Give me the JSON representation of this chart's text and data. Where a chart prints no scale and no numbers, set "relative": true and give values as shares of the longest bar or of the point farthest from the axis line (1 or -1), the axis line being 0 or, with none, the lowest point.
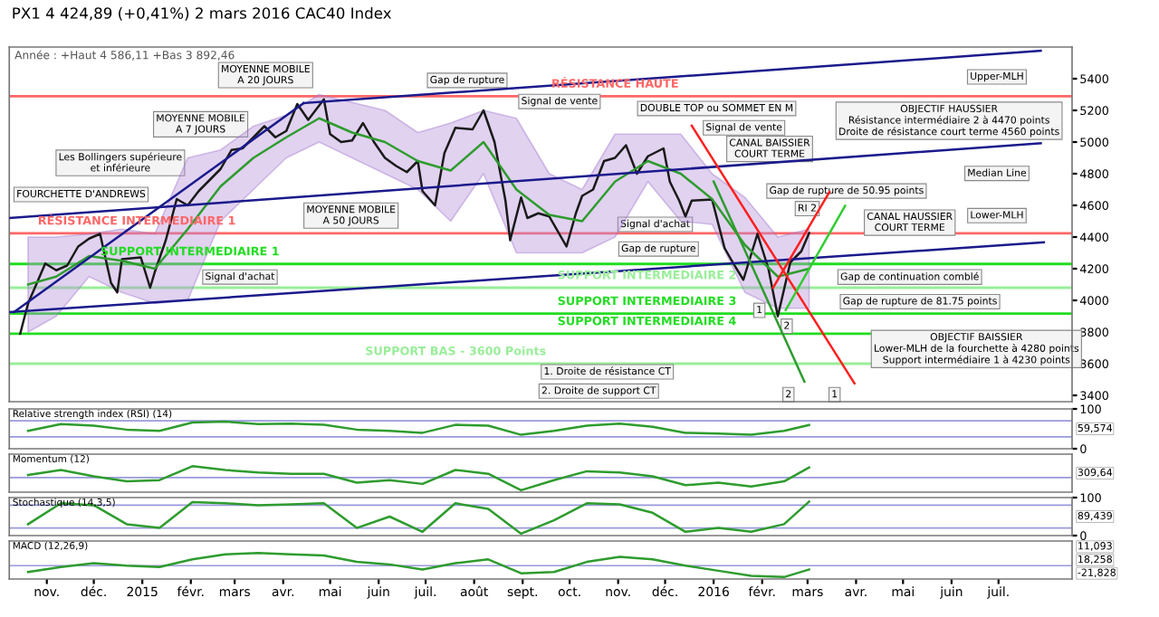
{
  "chart_data": [
    {
      "type": "line",
      "title": "PX1 4 424,89 (+0,41%) 2 mars 2016 CAC40 Index",
      "subtitle": "Année : +Haut 4 586,11 +Bas 3 892,46",
      "xlim": [
        "2014-10-08",
        "2016-08-17"
      ],
      "ylim": [
        3360,
        5600
      ],
      "yticks": [
        3400,
        3600,
        3800,
        4000,
        4200,
        4400,
        4600,
        4800,
        5000,
        5200,
        5400
      ],
      "tick_labels": "y",
      "grid": false,
      "series": [
        {
          "color": "#1a1a1a",
          "x": [
            "2014-10-15",
            "2014-10-20",
            "2014-10-31",
            "2014-11-07",
            "2014-11-14",
            "2014-11-21",
            "2014-11-28",
            "2014-12-05",
            "2014-12-12",
            "2014-12-16",
            "2014-12-19",
            "2014-12-31",
            "2015-01-06",
            "2015-01-09",
            "2015-01-16",
            "2015-01-23",
            "2015-01-30",
            "2015-02-06",
            "2015-02-13",
            "2015-02-20",
            "2015-02-27",
            "2015-03-06",
            "2015-03-13",
            "2015-03-20",
            "2015-03-27",
            "2015-04-03",
            "2015-04-10",
            "2015-04-17",
            "2015-04-27",
            "2015-05-01",
            "2015-05-08",
            "2015-05-15",
            "2015-05-22",
            "2015-05-29",
            "2015-06-05",
            "2015-06-12",
            "2015-06-19",
            "2015-06-26",
            "2015-06-29",
            "2015-07-07",
            "2015-07-13",
            "2015-07-20",
            "2015-07-31",
            "2015-08-07",
            "2015-08-14",
            "2015-08-21",
            "2015-08-24",
            "2015-08-31",
            "2015-09-04",
            "2015-09-11",
            "2015-09-18",
            "2015-09-29",
            "2015-10-05",
            "2015-10-09",
            "2015-10-16",
            "2015-10-23",
            "2015-10-30",
            "2015-11-06",
            "2015-11-13",
            "2015-11-20",
            "2015-11-30",
            "2015-12-04",
            "2015-12-10",
            "2015-12-14",
            "2015-12-18",
            "2015-12-31",
            "2016-01-08",
            "2016-01-15",
            "2016-01-20",
            "2016-01-29",
            "2016-02-05",
            "2016-02-11",
            "2016-02-19",
            "2016-02-26",
            "2016-03-02"
          ],
          "values": [
            3790,
            3980,
            4233,
            4190,
            4220,
            4340,
            4390,
            4420,
            4110,
            4050,
            4260,
            4272,
            4080,
            4180,
            4380,
            4640,
            4600,
            4690,
            4760,
            4830,
            4950,
            4960,
            5030,
            5100,
            5030,
            5070,
            5240,
            5140,
            5270,
            5050,
            5000,
            5010,
            5120,
            5000,
            4900,
            4850,
            4810,
            4880,
            4690,
            4600,
            4930,
            5090,
            5080,
            5200,
            5000,
            4630,
            4380,
            4650,
            4520,
            4550,
            4530,
            4340,
            4550,
            4660,
            4700,
            4880,
            4900,
            4980,
            4800,
            4910,
            4960,
            4750,
            4630,
            4530,
            4630,
            4637,
            4330,
            4210,
            4130,
            4420,
            4200,
            3900,
            4240,
            4310,
            4425
          ]
        },
        {
          "color": "#2e9c2e",
          "x": [
            "2014-10-20",
            "2014-11-07",
            "2014-11-28",
            "2014-12-19",
            "2015-01-09",
            "2015-01-30",
            "2015-02-20",
            "2015-03-13",
            "2015-04-03",
            "2015-04-24",
            "2015-05-15",
            "2015-06-05",
            "2015-06-26",
            "2015-07-17",
            "2015-08-07",
            "2015-08-28",
            "2015-09-18",
            "2015-10-09",
            "2015-10-30",
            "2015-11-20",
            "2015-12-11",
            "2015-12-31",
            "2016-01-21",
            "2016-02-11",
            "2016-03-02"
          ],
          "values": [
            4100,
            4150,
            4280,
            4250,
            4200,
            4450,
            4720,
            4900,
            5030,
            5150,
            5060,
            5000,
            4880,
            4820,
            5000,
            4700,
            4540,
            4500,
            4750,
            4880,
            4800,
            4640,
            4350,
            4150,
            4200
          ],
          "lower": [
            3800,
            3900,
            4150,
            4050,
            3980,
            4000,
            4500,
            4700,
            4900,
            5000,
            4900,
            4800,
            4700,
            4500,
            4800,
            4300,
            4300,
            4300,
            4400,
            4750,
            4500,
            4480,
            4050,
            3950,
            3950
          ],
          "upper": [
            4400,
            4400,
            4420,
            4450,
            4420,
            4900,
            4950,
            5100,
            5170,
            5300,
            5250,
            5200,
            5060,
            5120,
            5200,
            5150,
            4800,
            4700,
            5050,
            5050,
            5050,
            4800,
            4650,
            4400,
            4450
          ]
        },
        {
          "color": "#1a1a8c",
          "x": [
            "2014-10-11",
            "2015-04-14"
          ],
          "values": [
            3926,
            5246
          ]
        },
        {
          "color": "#1a1a8c",
          "x": [
            "2015-04-14",
            "2016-07-28"
          ],
          "values": [
            5246,
            5576
          ]
        },
        {
          "color": "#1a1a8c",
          "x": [
            "2014-10-08",
            "2016-07-28"
          ],
          "values": [
            4520,
            4993
          ]
        },
        {
          "color": "#1a1a8c",
          "x": [
            "2014-10-08",
            "2016-07-30"
          ],
          "values": [
            3926,
            4366
          ]
        },
        {
          "color": "#ff2020",
          "x": [
            "2015-12-18",
            "2016-03-31"
          ],
          "values": [
            5103,
            3475
          ]
        },
        {
          "color": "#2e9c2e",
          "x": [
            "2016-01-01",
            "2016-02-28"
          ],
          "values": [
            4751,
            3486
          ]
        },
        {
          "color": "#ff2020",
          "x": [
            "2016-02-08",
            "2016-03-15"
          ],
          "values": [
            4080,
            4685
          ]
        },
        {
          "color": "#33cc33",
          "x": [
            "2016-02-16",
            "2016-03-25"
          ],
          "values": [
            3938,
            4597
          ]
        }
      ],
      "ref_lines": [
        {
          "axis": "y",
          "value": 5289.71,
          "label": "RÉSISTANCE HAUTE",
          "color": "#ff6666"
        },
        {
          "axis": "y",
          "value": 4423.81,
          "label": "RÉSISTANCE INTERMEDIAIRE 1",
          "color": "#ff6666"
        },
        {
          "axis": "y",
          "value": 4230,
          "label": "SUPPORT INTERMEDIAIRE 1",
          "color": "#22dd22"
        },
        {
          "axis": "y",
          "value": 4080,
          "label": "SUPPORT INTERMEDIAIRE 2",
          "color": "#99ee99"
        },
        {
          "axis": "y",
          "value": 3916.54,
          "label": "SUPPORT INTERMEDIAIRE 3",
          "color": "#22dd22"
        },
        {
          "axis": "y",
          "value": 3789.11,
          "label": "SUPPORT INTERMEDIAIRE 4",
          "color": "#22dd22"
        },
        {
          "axis": "y",
          "value": 3600,
          "label": "SUPPORT BAS - 3600 Points",
          "color": "#99ee99"
        }
      ],
      "annotations": [
        "MOYENNE MOBILE\nA 20 JOURS",
        "MOYENNE MOBILE\nA 7 JOURS",
        "Les Bollingers supérieure\net inférieure",
        "FOURCHETTE D'ANDREWS",
        "MOYENNE MOBILE\nA 50 JOURS",
        "Signal d'achat",
        "Signal de vente",
        "Gap de rupture",
        "DOUBLE TOP ou SOMMET EN M",
        "Signal de vente",
        "CANAL BAISSIER\nCOURT TERME",
        "OBJECTIF HAUSSIER\nRésistance intermédiaire 2 à 4470 points\nDroite de résistance court terme 4560 points",
        "Upper-MLH",
        "Median Line",
        "Lower-MLH",
        "Gap de rupture de 50.95 points",
        "RI 2",
        "CANAL HAUSSIER\nCOURT TERME",
        "Signal d'achat",
        "Gap de rupture",
        "Gap de continuation comblé",
        "Gap de rupture de 81.75 points",
        "OBJECTIF BAISSIER\nLower-MLH de la fourchette à 4280 points\nSupport intermédiaire 1 à 4230 points",
        "1. Droite de résistance CT",
        "2. Droite de support CT",
        "1",
        "2",
        "2",
        "1"
      ]
    },
    {
      "type": "line",
      "title": "Relative strength index (RSI) (14)",
      "xlim": [
        "2014-10-08",
        "2016-08-17"
      ],
      "ylim": [
        0,
        100
      ],
      "yticks": [
        0,
        100
      ],
      "tick_labels": "y",
      "grid": false,
      "x": [
        "2014-10-20",
        "2014-11-10",
        "2014-12-01",
        "2014-12-22",
        "2015-01-12",
        "2015-02-02",
        "2015-02-23",
        "2015-03-16",
        "2015-04-06",
        "2015-04-27",
        "2015-05-18",
        "2015-06-08",
        "2015-06-29",
        "2015-07-20",
        "2015-08-10",
        "2015-08-31",
        "2015-09-21",
        "2015-10-12",
        "2015-11-02",
        "2015-11-23",
        "2015-12-14",
        "2016-01-04",
        "2016-01-25",
        "2016-02-15",
        "2016-03-02"
      ],
      "series": [
        {
          "color": "#2e9c2e",
          "values": [
            45,
            62,
            58,
            48,
            45,
            66,
            68,
            62,
            63,
            60,
            48,
            45,
            40,
            60,
            58,
            35,
            45,
            58,
            63,
            55,
            40,
            38,
            35,
            45,
            59.574
          ]
        }
      ],
      "ref_lines": [
        {
          "axis": "y",
          "value": 30,
          "color": "#9999dd"
        },
        {
          "axis": "y",
          "value": 70,
          "color": "#9999dd"
        }
      ],
      "annotations": [
        "59,574"
      ]
    },
    {
      "type": "line",
      "title": "Momentum (12)",
      "xlim": [
        "2014-10-08",
        "2016-08-17"
      ],
      "relative": true,
      "tick_labels": false,
      "grid": false,
      "x": [
        "2014-10-20",
        "2014-11-10",
        "2014-12-01",
        "2014-12-22",
        "2015-01-12",
        "2015-02-02",
        "2015-02-23",
        "2015-03-16",
        "2015-04-06",
        "2015-04-27",
        "2015-05-18",
        "2015-06-08",
        "2015-06-29",
        "2015-07-20",
        "2015-08-10",
        "2015-08-31",
        "2015-09-21",
        "2015-10-12",
        "2015-11-02",
        "2015-11-23",
        "2015-12-14",
        "2016-01-04",
        "2016-01-25",
        "2016-02-15",
        "2016-03-02"
      ],
      "series": [
        {
          "color": "#2e9c2e",
          "values": [
            0.2,
            0.6,
            0.1,
            -0.3,
            -0.2,
            0.9,
            0.6,
            0.4,
            0.3,
            0.3,
            -0.4,
            -0.2,
            -0.5,
            0.6,
            0.3,
            -1.0,
            -0.2,
            0.5,
            0.4,
            0.1,
            -0.6,
            -0.4,
            -0.7,
            -0.3,
            0.8
          ]
        }
      ],
      "ref_lines": [
        {
          "axis": "y",
          "value": 0,
          "color": "#9999dd"
        }
      ],
      "annotations": [
        "309,64"
      ]
    },
    {
      "type": "line",
      "title": "Stochastique (14,3,5)",
      "xlim": [
        "2014-10-08",
        "2016-08-17"
      ],
      "ylim": [
        0,
        100
      ],
      "yticks": [
        0,
        100
      ],
      "tick_labels": "y",
      "grid": false,
      "ref_lines": [
        {
          "axis": "y",
          "value": 20,
          "color": "#9999dd"
        },
        {
          "axis": "y",
          "value": 80,
          "color": "#9999dd"
        }
      ],
      "x": [
        "2014-10-20",
        "2014-11-10",
        "2014-12-01",
        "2014-12-22",
        "2015-01-12",
        "2015-02-02",
        "2015-02-23",
        "2015-03-16",
        "2015-04-06",
        "2015-04-27",
        "2015-05-18",
        "2015-06-08",
        "2015-06-29",
        "2015-07-20",
        "2015-08-10",
        "2015-08-31",
        "2015-09-21",
        "2015-10-12",
        "2015-11-02",
        "2015-11-23",
        "2015-12-14",
        "2016-01-04",
        "2016-01-25",
        "2016-02-15",
        "2016-03-02"
      ],
      "series": [
        {
          "color": "#2e9c2e",
          "values": [
            30,
            85,
            80,
            30,
            20,
            88,
            85,
            80,
            82,
            85,
            20,
            50,
            10,
            85,
            70,
            5,
            40,
            85,
            82,
            60,
            10,
            20,
            10,
            30,
            89.4
          ]
        }
      ],
      "annotations": [
        "89,439"
      ]
    },
    {
      "type": "line",
      "title": "MACD (12,26,9)",
      "xlim": [
        "2014-10-08",
        "2016-08-17"
      ],
      "relative": true,
      "tick_labels": "x",
      "grid": false,
      "xticks": [
        {
          "value": "2014-11-01",
          "label": "nov."
        },
        {
          "value": "2014-12-01",
          "label": "déc."
        },
        {
          "value": "2015-01-01",
          "label": "2015"
        },
        {
          "value": "2015-02-01",
          "label": "févr."
        },
        {
          "value": "2015-03-01",
          "label": "mars"
        },
        {
          "value": "2015-04-01",
          "label": "avr."
        },
        {
          "value": "2015-05-01",
          "label": "mai"
        },
        {
          "value": "2015-06-01",
          "label": "juin"
        },
        {
          "value": "2015-07-01",
          "label": "juil."
        },
        {
          "value": "2015-08-01",
          "label": "août"
        },
        {
          "value": "2015-09-01",
          "label": "sept."
        },
        {
          "value": "2015-10-01",
          "label": "oct."
        },
        {
          "value": "2015-11-01",
          "label": "nov."
        },
        {
          "value": "2015-12-01",
          "label": "déc."
        },
        {
          "value": "2016-01-01",
          "label": "2016"
        },
        {
          "value": "2016-02-01",
          "label": "févr."
        },
        {
          "value": "2016-03-01",
          "label": "mars"
        },
        {
          "value": "2016-04-01",
          "label": "avr."
        },
        {
          "value": "2016-05-01",
          "label": "mai"
        },
        {
          "value": "2016-06-01",
          "label": "juin"
        },
        {
          "value": "2016-07-01",
          "label": "juil."
        }
      ],
      "x": [
        "2014-10-20",
        "2014-11-10",
        "2014-12-01",
        "2014-12-22",
        "2015-01-12",
        "2015-02-02",
        "2015-02-23",
        "2015-03-16",
        "2015-04-06",
        "2015-04-27",
        "2015-05-18",
        "2015-06-08",
        "2015-06-29",
        "2015-07-20",
        "2015-08-10",
        "2015-08-31",
        "2015-09-21",
        "2015-10-12",
        "2015-11-02",
        "2015-11-23",
        "2015-12-14",
        "2016-01-04",
        "2016-01-25",
        "2016-02-15",
        "2016-03-02"
      ],
      "series": [
        {
          "color": "#2e9c2e",
          "values": [
            -0.5,
            -0.1,
            0.2,
            0.0,
            -0.1,
            0.5,
            0.9,
            1.0,
            0.9,
            0.8,
            0.3,
            0.1,
            -0.3,
            0.2,
            0.5,
            -0.6,
            -0.5,
            0.3,
            0.7,
            0.5,
            0.0,
            -0.4,
            -0.8,
            -0.9,
            -0.3
          ]
        }
      ],
      "ref_lines": [
        {
          "axis": "y",
          "value": 0,
          "color": "#9999dd"
        }
      ],
      "annotations": [
        "11,093",
        "18,258",
        "-21,828"
      ]
    }
  ]
}
